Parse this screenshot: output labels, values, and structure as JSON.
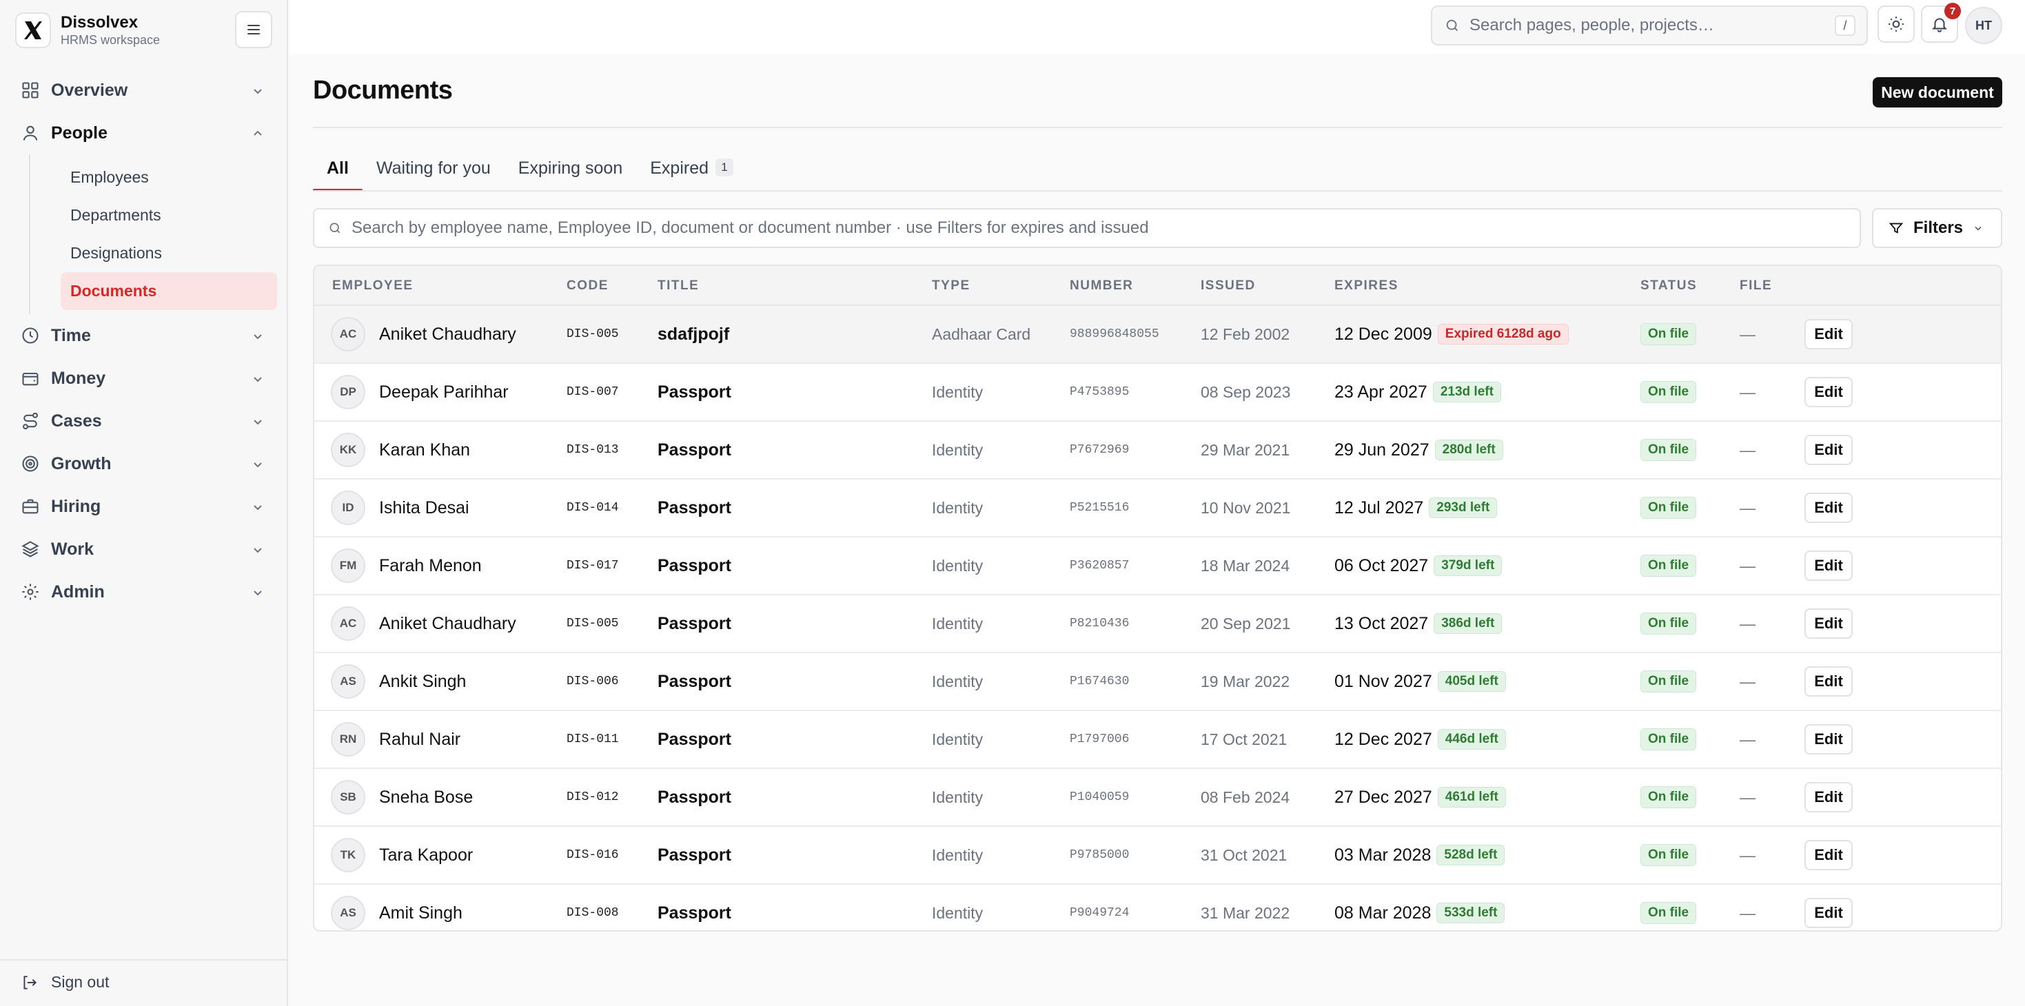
{
  "brand": {
    "name": "Dissolvex",
    "subtitle": "HRMS workspace"
  },
  "sidebar": {
    "items": [
      {
        "label": "Overview",
        "icon": "grid-icon",
        "expanded": false
      },
      {
        "label": "People",
        "icon": "user-icon",
        "expanded": true,
        "children": [
          {
            "label": "Employees",
            "active": false
          },
          {
            "label": "Departments",
            "active": false
          },
          {
            "label": "Designations",
            "active": false
          },
          {
            "label": "Documents",
            "active": true
          }
        ]
      },
      {
        "label": "Time",
        "icon": "clock-icon",
        "expanded": false
      },
      {
        "label": "Money",
        "icon": "wallet-icon",
        "expanded": false
      },
      {
        "label": "Cases",
        "icon": "route-icon",
        "expanded": false
      },
      {
        "label": "Growth",
        "icon": "target-icon",
        "expanded": false
      },
      {
        "label": "Hiring",
        "icon": "briefcase-icon",
        "expanded": false
      },
      {
        "label": "Work",
        "icon": "layers-icon",
        "expanded": false
      },
      {
        "label": "Admin",
        "icon": "gear-icon",
        "expanded": false
      }
    ],
    "sign_out": "Sign out"
  },
  "topbar": {
    "search_placeholder": "Search pages, people, projects…",
    "shortcut": "/",
    "notification_count": "7",
    "user_initials": "HT"
  },
  "page": {
    "title": "Documents",
    "new_button": "New document",
    "tabs": [
      {
        "label": "All",
        "active": true,
        "count": ""
      },
      {
        "label": "Waiting for you",
        "active": false,
        "count": ""
      },
      {
        "label": "Expiring soon",
        "active": false,
        "count": ""
      },
      {
        "label": "Expired",
        "active": false,
        "count": "1"
      }
    ],
    "search_placeholder": "Search by employee name, Employee ID, document or document number · use Filters for expires and issued",
    "filters_label": "Filters"
  },
  "colors": {
    "accent": "#dc2626",
    "status_green": "#2e7d32",
    "expired_red": "#c62828"
  },
  "table": {
    "columns": [
      "EMPLOYEE",
      "CODE",
      "TITLE",
      "TYPE",
      "NUMBER",
      "ISSUED",
      "EXPIRES",
      "STATUS",
      "FILE"
    ],
    "rows": [
      {
        "initials": "AC",
        "name": "Aniket Chaudhary",
        "code": "DIS-005",
        "title": "sdafjpojf",
        "type": "Aadhaar Card",
        "number": "988996848055",
        "issued": "12 Feb 2002",
        "expires": "12 Dec 2009",
        "expiry_note": "Expired 6128d ago",
        "expired": true,
        "status": "On file",
        "file": "—",
        "action": "Edit"
      },
      {
        "initials": "DP",
        "name": "Deepak Parihhar",
        "code": "DIS-007",
        "title": "Passport",
        "type": "Identity",
        "number": "P4753895",
        "issued": "08 Sep 2023",
        "expires": "23 Apr 2027",
        "expiry_note": "213d left",
        "expired": false,
        "status": "On file",
        "file": "—",
        "action": "Edit"
      },
      {
        "initials": "KK",
        "name": "Karan Khan",
        "code": "DIS-013",
        "title": "Passport",
        "type": "Identity",
        "number": "P7672969",
        "issued": "29 Mar 2021",
        "expires": "29 Jun 2027",
        "expiry_note": "280d left",
        "expired": false,
        "status": "On file",
        "file": "—",
        "action": "Edit"
      },
      {
        "initials": "ID",
        "name": "Ishita Desai",
        "code": "DIS-014",
        "title": "Passport",
        "type": "Identity",
        "number": "P5215516",
        "issued": "10 Nov 2021",
        "expires": "12 Jul 2027",
        "expiry_note": "293d left",
        "expired": false,
        "status": "On file",
        "file": "—",
        "action": "Edit"
      },
      {
        "initials": "FM",
        "name": "Farah Menon",
        "code": "DIS-017",
        "title": "Passport",
        "type": "Identity",
        "number": "P3620857",
        "issued": "18 Mar 2024",
        "expires": "06 Oct 2027",
        "expiry_note": "379d left",
        "expired": false,
        "status": "On file",
        "file": "—",
        "action": "Edit"
      },
      {
        "initials": "AC",
        "name": "Aniket Chaudhary",
        "code": "DIS-005",
        "title": "Passport",
        "type": "Identity",
        "number": "P8210436",
        "issued": "20 Sep 2021",
        "expires": "13 Oct 2027",
        "expiry_note": "386d left",
        "expired": false,
        "status": "On file",
        "file": "—",
        "action": "Edit"
      },
      {
        "initials": "AS",
        "name": "Ankit Singh",
        "code": "DIS-006",
        "title": "Passport",
        "type": "Identity",
        "number": "P1674630",
        "issued": "19 Mar 2022",
        "expires": "01 Nov 2027",
        "expiry_note": "405d left",
        "expired": false,
        "status": "On file",
        "file": "—",
        "action": "Edit"
      },
      {
        "initials": "RN",
        "name": "Rahul Nair",
        "code": "DIS-011",
        "title": "Passport",
        "type": "Identity",
        "number": "P1797006",
        "issued": "17 Oct 2021",
        "expires": "12 Dec 2027",
        "expiry_note": "446d left",
        "expired": false,
        "status": "On file",
        "file": "—",
        "action": "Edit"
      },
      {
        "initials": "SB",
        "name": "Sneha Bose",
        "code": "DIS-012",
        "title": "Passport",
        "type": "Identity",
        "number": "P1040059",
        "issued": "08 Feb 2024",
        "expires": "27 Dec 2027",
        "expiry_note": "461d left",
        "expired": false,
        "status": "On file",
        "file": "—",
        "action": "Edit"
      },
      {
        "initials": "TK",
        "name": "Tara Kapoor",
        "code": "DIS-016",
        "title": "Passport",
        "type": "Identity",
        "number": "P9785000",
        "issued": "31 Oct 2021",
        "expires": "03 Mar 2028",
        "expiry_note": "528d left",
        "expired": false,
        "status": "On file",
        "file": "—",
        "action": "Edit"
      },
      {
        "initials": "AS",
        "name": "Amit Singh",
        "code": "DIS-008",
        "title": "Passport",
        "type": "Identity",
        "number": "P9049724",
        "issued": "31 Mar 2022",
        "expires": "08 Mar 2028",
        "expiry_note": "533d left",
        "expired": false,
        "status": "On file",
        "file": "—",
        "action": "Edit"
      }
    ]
  }
}
